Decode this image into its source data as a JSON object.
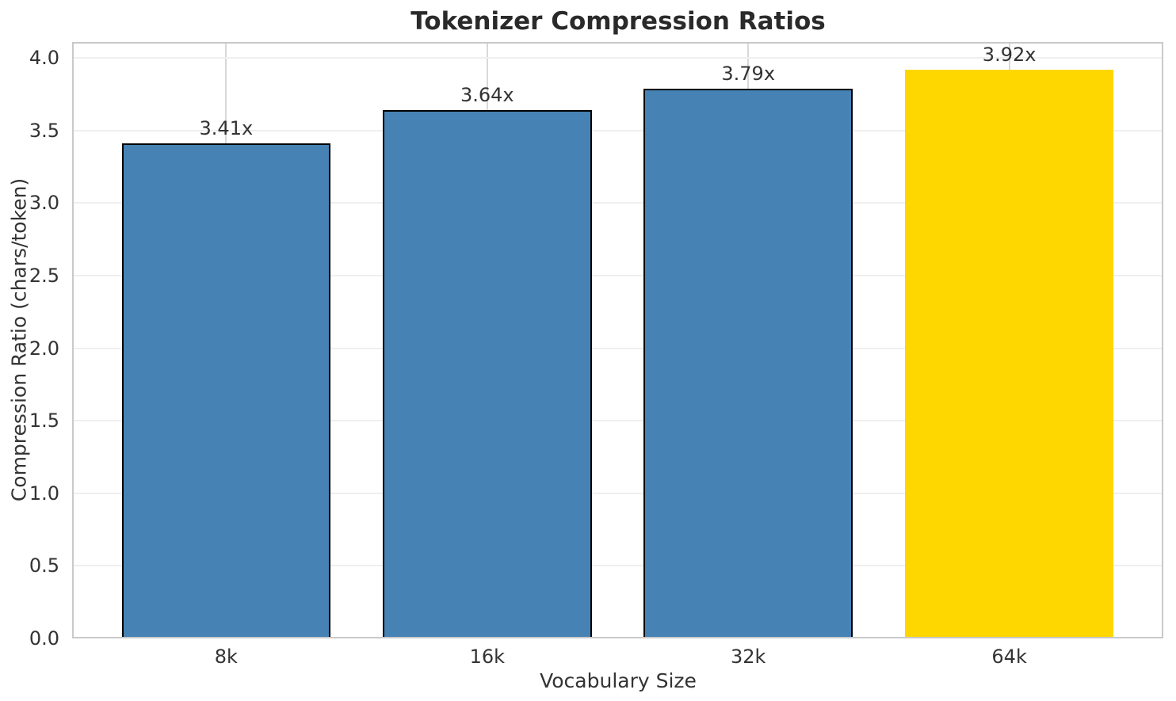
{
  "chart_data": {
    "type": "bar",
    "title": "Tokenizer Compression Ratios",
    "xlabel": "Vocabulary Size",
    "ylabel": "Compression Ratio (chars/token)",
    "categories": [
      "8k",
      "16k",
      "32k",
      "64k"
    ],
    "values": [
      3.41,
      3.64,
      3.79,
      3.92
    ],
    "bar_labels": [
      "3.41x",
      "3.64x",
      "3.79x",
      "3.92x"
    ],
    "ytick_labels": [
      "0.0",
      "0.5",
      "1.0",
      "1.5",
      "2.0",
      "2.5",
      "3.0",
      "3.5",
      "4.0"
    ],
    "yticks": [
      0.0,
      0.5,
      1.0,
      1.5,
      2.0,
      2.5,
      3.0,
      3.5,
      4.0
    ],
    "ylim": [
      0,
      4.11
    ],
    "xlim": [
      -0.59,
      3.59
    ],
    "bar_width": 0.8,
    "grid": true,
    "legend": false,
    "colors": {
      "bar_fill": "#4682B4",
      "highlight_fill": "#FFD700",
      "bar_edge": "#000000",
      "grid_horizontal": "#efefef",
      "grid_vertical": "#d8d8d8",
      "spine": "#c9c9c9",
      "text": "#333333",
      "title_text": "#2a2a2a"
    },
    "bar_colors": [
      "#4682B4",
      "#4682B4",
      "#4682B4",
      "#FFD700"
    ],
    "bar_edge_colors": [
      "#000000",
      "#000000",
      "#000000",
      null
    ]
  }
}
